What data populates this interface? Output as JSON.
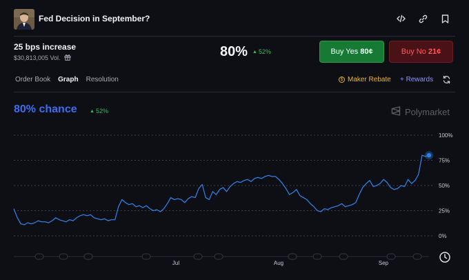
{
  "header": {
    "title": "Fed Decision in September?"
  },
  "outcome": {
    "name": "25 bps increase",
    "volume": "$30,813,005 Vol.",
    "probability": "80%",
    "change": "52%"
  },
  "buttons": {
    "buy_yes_label": "Buy Yes",
    "buy_yes_price": "80¢",
    "buy_no_label": "Buy No",
    "buy_no_price": "21¢"
  },
  "tabs": [
    {
      "label": "Order Book",
      "active": false
    },
    {
      "label": "Graph",
      "active": true
    },
    {
      "label": "Resolution",
      "active": false
    }
  ],
  "actions": {
    "maker_rebate": "Maker Rebate",
    "rewards": "+ Rewards"
  },
  "chart_header": {
    "chance": "80% chance",
    "change": "52%",
    "brand": "Polymarket"
  },
  "colors": {
    "accent_blue": "#3d6df0",
    "line_blue": "#2f7de1",
    "green": "#2fbf5a",
    "yes_bg": "#177a34",
    "no_bg": "#4a1217",
    "no_text": "#ff5a5f",
    "maker_gold": "#f0b429",
    "rewards_purple": "#8d94ff"
  },
  "chart_data": {
    "type": "line",
    "y_ticks": [
      "100%",
      "75%",
      "50%",
      "25%",
      "0%"
    ],
    "x_ticks": [
      "Jul",
      "Aug",
      "Sep"
    ],
    "ylim": [
      0,
      100
    ],
    "grid": true,
    "series": [
      {
        "values": [
          27,
          18,
          12,
          11,
          13,
          12,
          13,
          15,
          14,
          14,
          13,
          15,
          18,
          16,
          15,
          14,
          16,
          15,
          18,
          20,
          21,
          20,
          21,
          18,
          17,
          16,
          17,
          15,
          16,
          16,
          29,
          36,
          33,
          31,
          32,
          29,
          30,
          28,
          30,
          27,
          25,
          26,
          24,
          27,
          32,
          38,
          36,
          37,
          36,
          33,
          37,
          39,
          38,
          47,
          51,
          38,
          36,
          44,
          41,
          46,
          48,
          44,
          49,
          52,
          54,
          53,
          55,
          56,
          54,
          57,
          58,
          57,
          59,
          60,
          59,
          59,
          56,
          52,
          47,
          41,
          43,
          46,
          40,
          38,
          36,
          32,
          29,
          25,
          24,
          27,
          26,
          28,
          29,
          30,
          32,
          29,
          30,
          31,
          33,
          41,
          48,
          52,
          55,
          49,
          50,
          52,
          56,
          53,
          48,
          46,
          47,
          50,
          49,
          56,
          52,
          55,
          61,
          80,
          79,
          80
        ]
      }
    ]
  }
}
